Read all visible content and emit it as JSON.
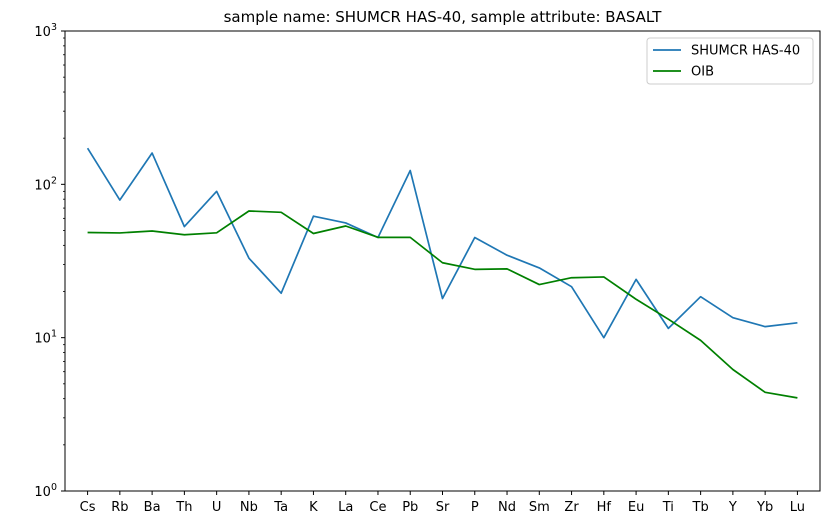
{
  "chart_data": {
    "type": "line",
    "title": "sample name: SHUMCR HAS-40, sample attribute: BASALT",
    "xlabel": "",
    "ylabel": "",
    "yscale": "log",
    "ylim": [
      1,
      1000
    ],
    "y_ticks": [
      {
        "value": 1,
        "base": "10",
        "exp": "0"
      },
      {
        "value": 10,
        "base": "10",
        "exp": "1"
      },
      {
        "value": 100,
        "base": "10",
        "exp": "2"
      },
      {
        "value": 1000,
        "base": "10",
        "exp": "3"
      }
    ],
    "grid": false,
    "legend_position": "top-right",
    "categories": [
      "Cs",
      "Rb",
      "Ba",
      "Th",
      "U",
      "Nb",
      "Ta",
      "K",
      "La",
      "Ce",
      "Pb",
      "Sr",
      "P",
      "Nd",
      "Sm",
      "Zr",
      "Hf",
      "Eu",
      "Ti",
      "Tb",
      "Y",
      "Yb",
      "Lu"
    ],
    "series": [
      {
        "name": "SHUMCR HAS-40",
        "color": "#1f77b4",
        "values": [
          172,
          79,
          160,
          53,
          90,
          33,
          19.5,
          62,
          56,
          45,
          123,
          18,
          45,
          34.5,
          28.5,
          21.5,
          10,
          24,
          11.5,
          18.5,
          13.5,
          11.8,
          12.5
        ]
      },
      {
        "name": "OIB",
        "color": "#008000",
        "values": [
          48.5,
          48.2,
          49.6,
          46.9,
          48.3,
          67,
          65.7,
          47.8,
          53.5,
          45.1,
          45.1,
          30.8,
          27.9,
          28.1,
          22.2,
          24.6,
          24.9,
          17.8,
          13.2,
          9.6,
          6.2,
          4.4,
          4.05
        ]
      }
    ]
  }
}
